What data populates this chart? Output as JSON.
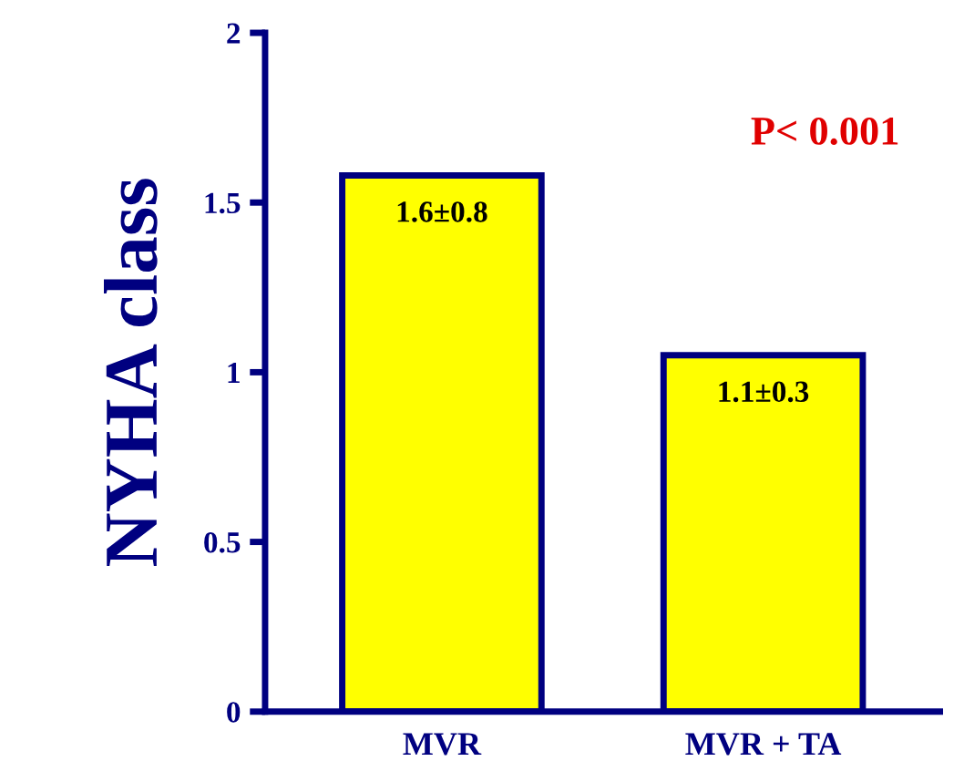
{
  "chart_data": {
    "type": "bar",
    "ylabel": "NYHA class",
    "categories": [
      "MVR",
      "MVR + TA"
    ],
    "values": [
      1.58,
      1.05
    ],
    "value_labels": [
      "1.6±0.8",
      "1.1±0.3"
    ],
    "color": "#ffff00",
    "ylim": [
      0,
      2
    ],
    "yticks": [
      0,
      0.5,
      1,
      1.5,
      2
    ],
    "grid": false,
    "annotations": [
      "P< 0.001"
    ]
  }
}
